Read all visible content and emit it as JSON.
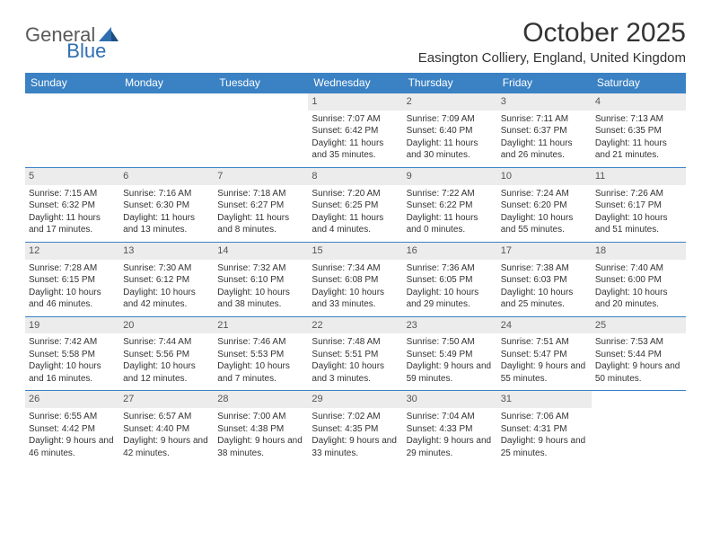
{
  "logo": {
    "text1": "General",
    "text2": "Blue",
    "color1": "#6b6b6b",
    "color2": "#2f6fb0"
  },
  "title": "October 2025",
  "location": "Easington Colliery, England, United Kingdom",
  "header_bg": "#3b82c4",
  "daynum_bg": "#ececec",
  "row_border": "#3b82c4",
  "dow": [
    "Sunday",
    "Monday",
    "Tuesday",
    "Wednesday",
    "Thursday",
    "Friday",
    "Saturday"
  ],
  "weeks": [
    [
      null,
      null,
      null,
      {
        "n": "1",
        "sr": "Sunrise: 7:07 AM",
        "ss": "Sunset: 6:42 PM",
        "dl": "Daylight: 11 hours and 35 minutes."
      },
      {
        "n": "2",
        "sr": "Sunrise: 7:09 AM",
        "ss": "Sunset: 6:40 PM",
        "dl": "Daylight: 11 hours and 30 minutes."
      },
      {
        "n": "3",
        "sr": "Sunrise: 7:11 AM",
        "ss": "Sunset: 6:37 PM",
        "dl": "Daylight: 11 hours and 26 minutes."
      },
      {
        "n": "4",
        "sr": "Sunrise: 7:13 AM",
        "ss": "Sunset: 6:35 PM",
        "dl": "Daylight: 11 hours and 21 minutes."
      }
    ],
    [
      {
        "n": "5",
        "sr": "Sunrise: 7:15 AM",
        "ss": "Sunset: 6:32 PM",
        "dl": "Daylight: 11 hours and 17 minutes."
      },
      {
        "n": "6",
        "sr": "Sunrise: 7:16 AM",
        "ss": "Sunset: 6:30 PM",
        "dl": "Daylight: 11 hours and 13 minutes."
      },
      {
        "n": "7",
        "sr": "Sunrise: 7:18 AM",
        "ss": "Sunset: 6:27 PM",
        "dl": "Daylight: 11 hours and 8 minutes."
      },
      {
        "n": "8",
        "sr": "Sunrise: 7:20 AM",
        "ss": "Sunset: 6:25 PM",
        "dl": "Daylight: 11 hours and 4 minutes."
      },
      {
        "n": "9",
        "sr": "Sunrise: 7:22 AM",
        "ss": "Sunset: 6:22 PM",
        "dl": "Daylight: 11 hours and 0 minutes."
      },
      {
        "n": "10",
        "sr": "Sunrise: 7:24 AM",
        "ss": "Sunset: 6:20 PM",
        "dl": "Daylight: 10 hours and 55 minutes."
      },
      {
        "n": "11",
        "sr": "Sunrise: 7:26 AM",
        "ss": "Sunset: 6:17 PM",
        "dl": "Daylight: 10 hours and 51 minutes."
      }
    ],
    [
      {
        "n": "12",
        "sr": "Sunrise: 7:28 AM",
        "ss": "Sunset: 6:15 PM",
        "dl": "Daylight: 10 hours and 46 minutes."
      },
      {
        "n": "13",
        "sr": "Sunrise: 7:30 AM",
        "ss": "Sunset: 6:12 PM",
        "dl": "Daylight: 10 hours and 42 minutes."
      },
      {
        "n": "14",
        "sr": "Sunrise: 7:32 AM",
        "ss": "Sunset: 6:10 PM",
        "dl": "Daylight: 10 hours and 38 minutes."
      },
      {
        "n": "15",
        "sr": "Sunrise: 7:34 AM",
        "ss": "Sunset: 6:08 PM",
        "dl": "Daylight: 10 hours and 33 minutes."
      },
      {
        "n": "16",
        "sr": "Sunrise: 7:36 AM",
        "ss": "Sunset: 6:05 PM",
        "dl": "Daylight: 10 hours and 29 minutes."
      },
      {
        "n": "17",
        "sr": "Sunrise: 7:38 AM",
        "ss": "Sunset: 6:03 PM",
        "dl": "Daylight: 10 hours and 25 minutes."
      },
      {
        "n": "18",
        "sr": "Sunrise: 7:40 AM",
        "ss": "Sunset: 6:00 PM",
        "dl": "Daylight: 10 hours and 20 minutes."
      }
    ],
    [
      {
        "n": "19",
        "sr": "Sunrise: 7:42 AM",
        "ss": "Sunset: 5:58 PM",
        "dl": "Daylight: 10 hours and 16 minutes."
      },
      {
        "n": "20",
        "sr": "Sunrise: 7:44 AM",
        "ss": "Sunset: 5:56 PM",
        "dl": "Daylight: 10 hours and 12 minutes."
      },
      {
        "n": "21",
        "sr": "Sunrise: 7:46 AM",
        "ss": "Sunset: 5:53 PM",
        "dl": "Daylight: 10 hours and 7 minutes."
      },
      {
        "n": "22",
        "sr": "Sunrise: 7:48 AM",
        "ss": "Sunset: 5:51 PM",
        "dl": "Daylight: 10 hours and 3 minutes."
      },
      {
        "n": "23",
        "sr": "Sunrise: 7:50 AM",
        "ss": "Sunset: 5:49 PM",
        "dl": "Daylight: 9 hours and 59 minutes."
      },
      {
        "n": "24",
        "sr": "Sunrise: 7:51 AM",
        "ss": "Sunset: 5:47 PM",
        "dl": "Daylight: 9 hours and 55 minutes."
      },
      {
        "n": "25",
        "sr": "Sunrise: 7:53 AM",
        "ss": "Sunset: 5:44 PM",
        "dl": "Daylight: 9 hours and 50 minutes."
      }
    ],
    [
      {
        "n": "26",
        "sr": "Sunrise: 6:55 AM",
        "ss": "Sunset: 4:42 PM",
        "dl": "Daylight: 9 hours and 46 minutes."
      },
      {
        "n": "27",
        "sr": "Sunrise: 6:57 AM",
        "ss": "Sunset: 4:40 PM",
        "dl": "Daylight: 9 hours and 42 minutes."
      },
      {
        "n": "28",
        "sr": "Sunrise: 7:00 AM",
        "ss": "Sunset: 4:38 PM",
        "dl": "Daylight: 9 hours and 38 minutes."
      },
      {
        "n": "29",
        "sr": "Sunrise: 7:02 AM",
        "ss": "Sunset: 4:35 PM",
        "dl": "Daylight: 9 hours and 33 minutes."
      },
      {
        "n": "30",
        "sr": "Sunrise: 7:04 AM",
        "ss": "Sunset: 4:33 PM",
        "dl": "Daylight: 9 hours and 29 minutes."
      },
      {
        "n": "31",
        "sr": "Sunrise: 7:06 AM",
        "ss": "Sunset: 4:31 PM",
        "dl": "Daylight: 9 hours and 25 minutes."
      },
      null
    ]
  ]
}
